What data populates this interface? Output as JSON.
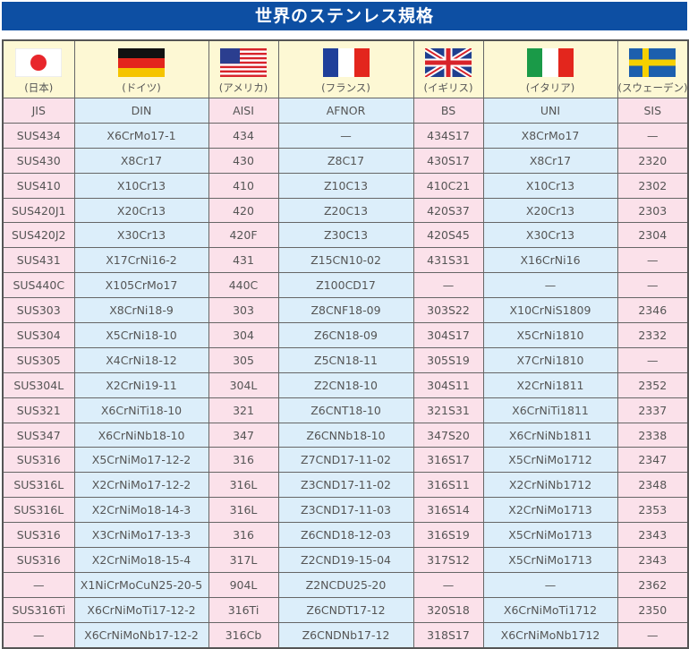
{
  "title": "世界のステンレス規格",
  "countries": [
    {
      "name": "(日本)",
      "flag": "japan-flag-icon"
    },
    {
      "name": "(ドイツ)",
      "flag": "germany-flag-icon"
    },
    {
      "name": "(アメリカ)",
      "flag": "usa-flag-icon"
    },
    {
      "name": "(フランス)",
      "flag": "france-flag-icon"
    },
    {
      "name": "(イギリス)",
      "flag": "uk-flag-icon"
    },
    {
      "name": "(イタリア)",
      "flag": "italy-flag-icon"
    },
    {
      "name": "(スウェーデン)",
      "flag": "sweden-flag-icon"
    }
  ],
  "headers": [
    "JIS",
    "DIN",
    "AISI",
    "AFNOR",
    "BS",
    "UNI",
    "SIS"
  ],
  "rows": [
    [
      "SUS434",
      "X6CrMo17-1",
      "434",
      "—",
      "434S17",
      "X8CrMo17",
      "—"
    ],
    [
      "SUS430",
      "X8Cr17",
      "430",
      "Z8C17",
      "430S17",
      "X8Cr17",
      "2320"
    ],
    [
      "SUS410",
      "X10Cr13",
      "410",
      "Z10C13",
      "410C21",
      "X10Cr13",
      "2302"
    ],
    [
      "SUS420J1",
      "X20Cr13",
      "420",
      "Z20C13",
      "420S37",
      "X20Cr13",
      "2303"
    ],
    [
      "SUS420J2",
      "X30Cr13",
      "420F",
      "Z30C13",
      "420S45",
      "X30Cr13",
      "2304"
    ],
    [
      "SUS431",
      "X17CrNi16-2",
      "431",
      "Z15CN10-02",
      "431S31",
      "X16CrNi16",
      "—"
    ],
    [
      "SUS440C",
      "X105CrMo17",
      "440C",
      "Z100CD17",
      "—",
      "—",
      "—"
    ],
    [
      "SUS303",
      "X8CrNi18-9",
      "303",
      "Z8CNF18-09",
      "303S22",
      "X10CrNiS1809",
      "2346"
    ],
    [
      "SUS304",
      "X5CrNi18-10",
      "304",
      "Z6CN18-09",
      "304S17",
      "X5CrNi1810",
      "2332"
    ],
    [
      "SUS305",
      "X4CrNi18-12",
      "305",
      "Z5CN18-11",
      "305S19",
      "X7CrNi1810",
      "—"
    ],
    [
      "SUS304L",
      "X2CrNi19-11",
      "304L",
      "Z2CN18-10",
      "304S11",
      "X2CrNi1811",
      "2352"
    ],
    [
      "SUS321",
      "X6CrNiTi18-10",
      "321",
      "Z6CNT18-10",
      "321S31",
      "X6CrNiTi1811",
      "2337"
    ],
    [
      "SUS347",
      "X6CrNiNb18-10",
      "347",
      "Z6CNNb18-10",
      "347S20",
      "X6CrNiNb1811",
      "2338"
    ],
    [
      "SUS316",
      "X5CrNiMo17-12-2",
      "316",
      "Z7CND17-11-02",
      "316S17",
      "X5CrNiMo1712",
      "2347"
    ],
    [
      "SUS316L",
      "X2CrNiMo17-12-2",
      "316L",
      "Z3CND17-11-02",
      "316S11",
      "X2CrNiNb1712",
      "2348"
    ],
    [
      "SUS316L",
      "X2CrNiMo18-14-3",
      "316L",
      "Z3CND17-11-03",
      "316S14",
      "X2CrNiMo1713",
      "2353"
    ],
    [
      "SUS316",
      "X3CrNiMo17-13-3",
      "316",
      "Z6CND18-12-03",
      "316S19",
      "X5CrNiMo1713",
      "2343"
    ],
    [
      "SUS316",
      "X2CrNiMo18-15-4",
      "317L",
      "Z2CND19-15-04",
      "317S12",
      "X5CrNiMo1713",
      "2343"
    ],
    [
      "—",
      "X1NiCrMoCuN25-20-5",
      "904L",
      "Z2NCDU25-20",
      "—",
      "—",
      "2362"
    ],
    [
      "SUS316Ti",
      "X6CrNiMoTi17-12-2",
      "316Ti",
      "Z6CNDT17-12",
      "320S18",
      "X6CrNiMoTi1712",
      "2350"
    ],
    [
      "—",
      "X6CrNiMoNb17-12-2",
      "316Cb",
      "Z6CNDNb17-12",
      "318S17",
      "X6CrNiMoNb1712",
      "—"
    ]
  ],
  "colors": {
    "title_bg": "#0d4fa3",
    "pink": "#fbe1ea",
    "blue": "#dceefa",
    "flag_row": "#fdf8d4"
  }
}
